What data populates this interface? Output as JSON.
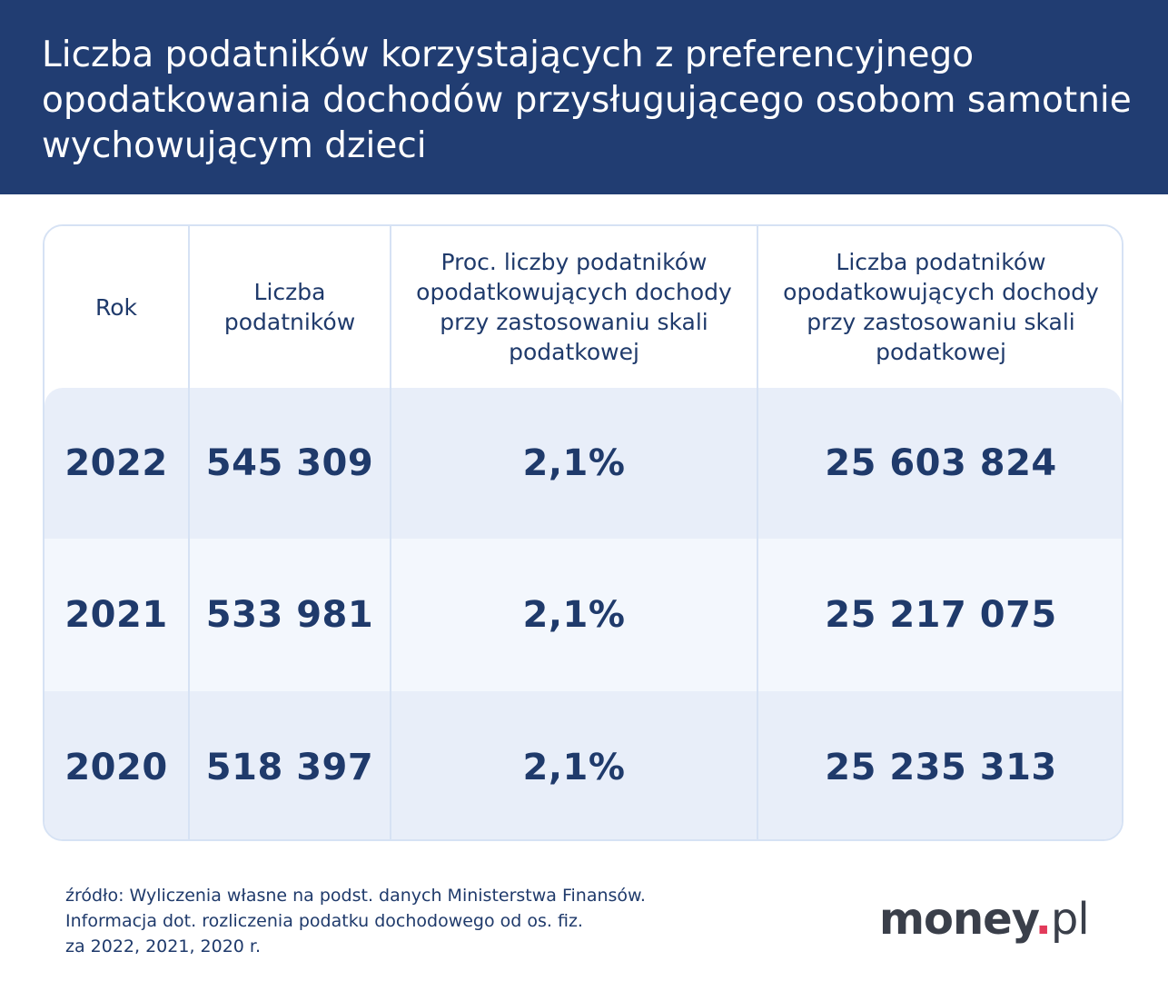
{
  "title": "Liczba podatników korzystających z preferencyjnego opodatkowania dochodów przysługującego osobom samotnie wychowującym dzieci",
  "table": {
    "headers": [
      "Rok",
      "Liczba podatników",
      "Proc. liczby podatników opodatkowujących dochody przy zastosowaniu skali podatkowej",
      "Liczba podatników opodatkowujących dochody przy zastosowaniu skali podatkowej"
    ],
    "rows": [
      [
        "2022",
        "545 309",
        "2,1%",
        "25 603 824"
      ],
      [
        "2021",
        "533 981",
        "2,1%",
        "25 217 075"
      ],
      [
        "2020",
        "518 397",
        "2,1%",
        "25 235 313"
      ]
    ]
  },
  "source_lines": [
    "źródło: Wyliczenia własne na podst. danych Ministerstwa Finansów.",
    "Informacja dot. rozliczenia podatku dochodowego od os. fiz.",
    "za 2022, 2021, 2020 r."
  ],
  "logo": {
    "name": "money",
    "dot": ".",
    "tld": "pl"
  },
  "colors": {
    "header_bg": "#213d72",
    "text": "#1f3a6b",
    "row_alt": "#e8eef9",
    "accent": "#e23a5a"
  }
}
